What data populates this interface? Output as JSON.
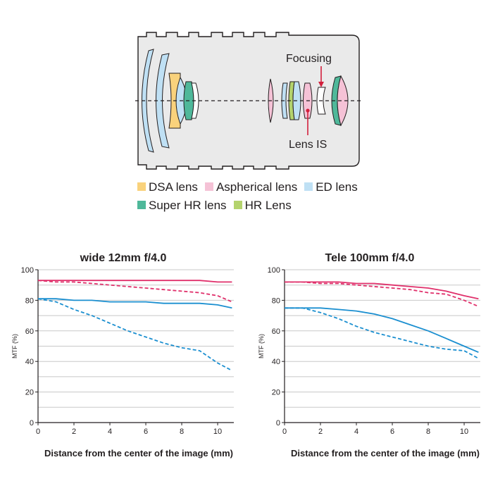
{
  "diagram": {
    "focusing_label": "Focusing",
    "lens_is_label": "Lens IS"
  },
  "legend": {
    "items": [
      {
        "label": "DSA lens",
        "color": "#f9d27c"
      },
      {
        "label": "Aspherical lens",
        "color": "#f5c2d6"
      },
      {
        "label": "ED lens",
        "color": "#bfe0f4"
      },
      {
        "label": "Super HR lens",
        "color": "#4fb89a"
      },
      {
        "label": "HR Lens",
        "color": "#b4d36d"
      }
    ]
  },
  "colors": {
    "sagittal": "#e0306b",
    "meridional": "#1b8fd0",
    "grid": "#c8c8c8"
  },
  "chart_data": [
    {
      "type": "line",
      "title": "wide 12mm f/4.0",
      "xlabel": "Distance from the center of the image (mm)",
      "ylabel": "MTF (%)",
      "xlim": [
        0,
        10.9
      ],
      "ylim": [
        0,
        100
      ],
      "xticks": [
        0,
        2,
        4,
        6,
        8,
        10
      ],
      "yticks": [
        0,
        20,
        40,
        60,
        80,
        100
      ],
      "series": [
        {
          "color": "#e0306b",
          "style": "solid",
          "x": [
            0,
            1,
            2,
            3,
            4,
            5,
            6,
            7,
            8,
            9,
            10,
            10.8
          ],
          "y": [
            93,
            93,
            93,
            93,
            93,
            93,
            93,
            93,
            93,
            93,
            92,
            92
          ]
        },
        {
          "color": "#e0306b",
          "style": "dashed",
          "x": [
            0,
            1,
            2,
            3,
            4,
            5,
            6,
            7,
            8,
            9,
            10,
            10.8
          ],
          "y": [
            93,
            92,
            92,
            91,
            90,
            89,
            88,
            87,
            86,
            85,
            83,
            79
          ]
        },
        {
          "color": "#1b8fd0",
          "style": "solid",
          "x": [
            0,
            1,
            2,
            3,
            4,
            5,
            6,
            7,
            8,
            9,
            10,
            10.8
          ],
          "y": [
            81,
            81,
            80,
            80,
            79,
            79,
            79,
            78,
            78,
            78,
            77,
            75
          ]
        },
        {
          "color": "#1b8fd0",
          "style": "dashed",
          "x": [
            0,
            1,
            2,
            3,
            4,
            5,
            6,
            7,
            8,
            9,
            10,
            10.8
          ],
          "y": [
            81,
            79,
            74,
            70,
            65,
            60,
            56,
            52,
            49,
            47,
            39,
            34
          ]
        }
      ]
    },
    {
      "type": "line",
      "title": "Tele 100mm f/4.0",
      "xlabel": "Distance from the center of the image (mm)",
      "ylabel": "MTF (%)",
      "xlim": [
        0,
        10.9
      ],
      "ylim": [
        0,
        100
      ],
      "xticks": [
        0,
        2,
        4,
        6,
        8,
        10
      ],
      "yticks": [
        0,
        20,
        40,
        60,
        80,
        100
      ],
      "series": [
        {
          "color": "#e0306b",
          "style": "solid",
          "x": [
            0,
            1,
            2,
            3,
            4,
            5,
            6,
            7,
            8,
            9,
            10,
            10.8
          ],
          "y": [
            92,
            92,
            92,
            92,
            91,
            91,
            90,
            89,
            88,
            86,
            83,
            81
          ]
        },
        {
          "color": "#e0306b",
          "style": "dashed",
          "x": [
            0,
            1,
            2,
            3,
            4,
            5,
            6,
            7,
            8,
            9,
            10,
            10.8
          ],
          "y": [
            92,
            92,
            91,
            91,
            90,
            89,
            88,
            87,
            85,
            84,
            80,
            76
          ]
        },
        {
          "color": "#1b8fd0",
          "style": "solid",
          "x": [
            0,
            1,
            2,
            3,
            4,
            5,
            6,
            7,
            8,
            9,
            10,
            10.8
          ],
          "y": [
            75,
            75,
            75,
            74,
            73,
            71,
            68,
            64,
            60,
            55,
            50,
            46
          ]
        },
        {
          "color": "#1b8fd0",
          "style": "dashed",
          "x": [
            0,
            1,
            2,
            3,
            4,
            5,
            6,
            7,
            8,
            9,
            10,
            10.8
          ],
          "y": [
            75,
            75,
            72,
            68,
            63,
            59,
            56,
            53,
            50,
            48,
            47,
            42
          ]
        }
      ]
    }
  ]
}
